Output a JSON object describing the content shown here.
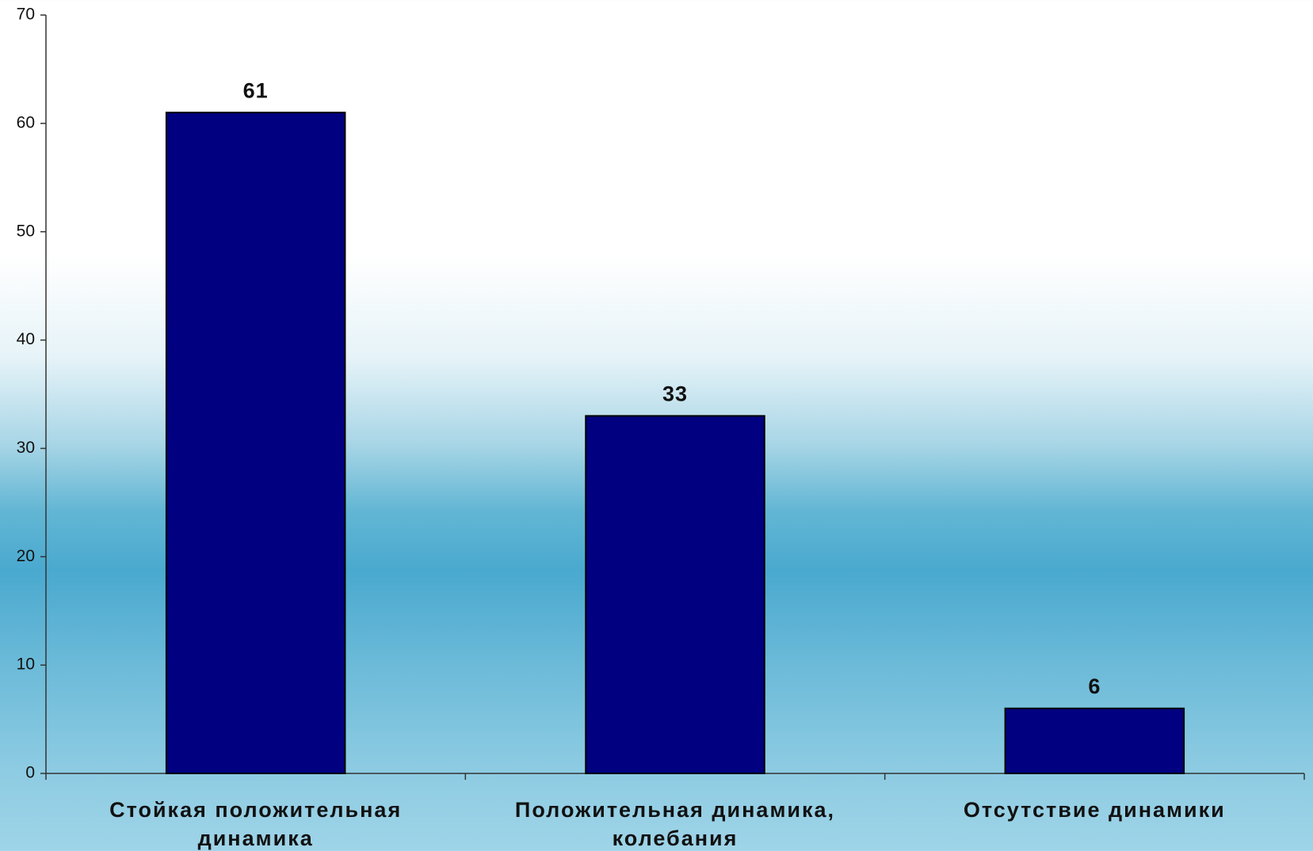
{
  "chart_data": {
    "type": "bar",
    "categories": [
      "Стойкая положительная динамика",
      "Положительная динамика, колебания",
      "Отсутствие динамики"
    ],
    "values": [
      61,
      33,
      6
    ],
    "color": "#000080",
    "ylim": [
      0,
      70
    ],
    "yticks": [
      0,
      10,
      20,
      30,
      40,
      50,
      60,
      70
    ],
    "grid": false
  }
}
